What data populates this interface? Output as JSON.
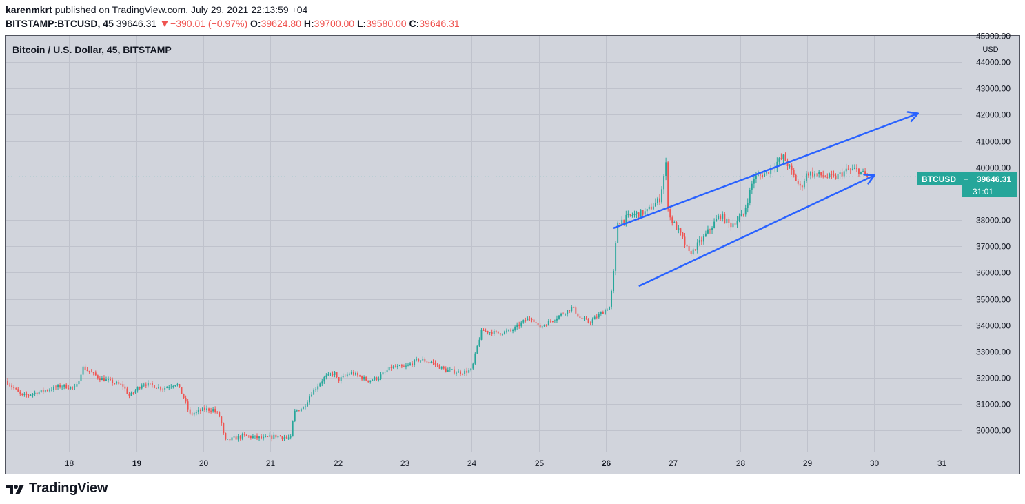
{
  "header": {
    "author": "karenmkrt",
    "published": "published on TradingView.com, July 29, 2021 22:13:59 +04",
    "symbol": "BITSTAMP:BTCUSD, 45",
    "price": "39646.31",
    "change": "−390.01 (−0.97%)",
    "o_label": "O:",
    "o_value": "39624.80",
    "h_label": "H:",
    "h_value": "39700.00",
    "l_label": "L:",
    "l_value": "39580.00",
    "c_label": "C:",
    "c_value": "39646.31"
  },
  "legend_title": "Bitcoin / U.S. Dollar, 45, BITSTAMP",
  "price_tag": {
    "symbol": "BTCUSD",
    "price": "39646.31",
    "countdown": "31:01"
  },
  "brand": "TradingView",
  "colors": {
    "up": "#26a69a",
    "down": "#ef5350",
    "background": "#d1d4dc",
    "trendline": "#2962ff",
    "grid": "#bfc2cc",
    "price_line": "#26a69a"
  },
  "chart_data": {
    "type": "candlestick",
    "title": "Bitcoin / U.S. Dollar, 45, BITSTAMP",
    "y_unit": "USD",
    "ylim": [
      29200,
      45000
    ],
    "xlim": [
      17.05,
      31.3
    ],
    "y_ticks": [
      {
        "value": 45000,
        "label": "45000.00"
      },
      {
        "value": 44000,
        "label": "44000.00"
      },
      {
        "value": 43000,
        "label": "43000.00"
      },
      {
        "value": 42000,
        "label": "42000.00"
      },
      {
        "value": 41000,
        "label": "41000.00"
      },
      {
        "value": 40000,
        "label": "40000.00"
      },
      {
        "value": 39000,
        "label": "39000.00"
      },
      {
        "value": 38000,
        "label": "38000.00"
      },
      {
        "value": 37000,
        "label": "37000.00"
      },
      {
        "value": 36000,
        "label": "36000.00"
      },
      {
        "value": 35000,
        "label": "35000.00"
      },
      {
        "value": 34000,
        "label": "34000.00"
      },
      {
        "value": 33000,
        "label": "33000.00"
      },
      {
        "value": 32000,
        "label": "32000.00"
      },
      {
        "value": 31000,
        "label": "31000.00"
      },
      {
        "value": 30000,
        "label": "30000.00"
      }
    ],
    "x_ticks": [
      {
        "value": 18,
        "label": "18",
        "bold": false
      },
      {
        "value": 19,
        "label": "19",
        "bold": true
      },
      {
        "value": 20,
        "label": "20",
        "bold": false
      },
      {
        "value": 21,
        "label": "21",
        "bold": false
      },
      {
        "value": 22,
        "label": "22",
        "bold": false
      },
      {
        "value": 23,
        "label": "23",
        "bold": false
      },
      {
        "value": 24,
        "label": "24",
        "bold": false
      },
      {
        "value": 25,
        "label": "25",
        "bold": false
      },
      {
        "value": 26,
        "label": "26",
        "bold": true
      },
      {
        "value": 27,
        "label": "27",
        "bold": false
      },
      {
        "value": 28,
        "label": "28",
        "bold": false
      },
      {
        "value": 29,
        "label": "29",
        "bold": false
      },
      {
        "value": 30,
        "label": "30",
        "bold": false
      },
      {
        "value": 31,
        "label": "31",
        "bold": false
      }
    ],
    "last_price": 39646.31,
    "bar_interval_days": 0.03125,
    "close_path": [
      [
        17.05,
        31900
      ],
      [
        17.3,
        31300
      ],
      [
        17.6,
        31500
      ],
      [
        17.9,
        31700
      ],
      [
        18.1,
        31600
      ],
      [
        18.2,
        32400
      ],
      [
        18.45,
        32000
      ],
      [
        18.8,
        31700
      ],
      [
        18.9,
        31300
      ],
      [
        19.1,
        31800
      ],
      [
        19.4,
        31600
      ],
      [
        19.6,
        31800
      ],
      [
        19.7,
        31300
      ],
      [
        19.8,
        30600
      ],
      [
        20.0,
        30800
      ],
      [
        20.15,
        30800
      ],
      [
        20.25,
        30500
      ],
      [
        20.32,
        29600
      ],
      [
        20.6,
        29800
      ],
      [
        20.9,
        29700
      ],
      [
        21.1,
        29800
      ],
      [
        21.3,
        29700
      ],
      [
        21.35,
        30700
      ],
      [
        21.5,
        30900
      ],
      [
        21.6,
        31400
      ],
      [
        21.8,
        32000
      ],
      [
        21.95,
        32200
      ],
      [
        22.0,
        31900
      ],
      [
        22.2,
        32200
      ],
      [
        22.45,
        31900
      ],
      [
        22.6,
        32000
      ],
      [
        22.8,
        32400
      ],
      [
        23.0,
        32400
      ],
      [
        23.2,
        32700
      ],
      [
        23.4,
        32600
      ],
      [
        23.6,
        32300
      ],
      [
        23.85,
        32200
      ],
      [
        24.0,
        32300
      ],
      [
        24.1,
        33400
      ],
      [
        24.15,
        33800
      ],
      [
        24.4,
        33700
      ],
      [
        24.6,
        33800
      ],
      [
        24.8,
        34200
      ],
      [
        24.9,
        34300
      ],
      [
        25.0,
        33900
      ],
      [
        25.2,
        34200
      ],
      [
        25.45,
        34600
      ],
      [
        25.5,
        34700
      ],
      [
        25.6,
        34300
      ],
      [
        25.75,
        34100
      ],
      [
        25.9,
        34400
      ],
      [
        26.05,
        34700
      ],
      [
        26.1,
        35600
      ],
      [
        26.17,
        37900
      ],
      [
        26.4,
        38200
      ],
      [
        26.6,
        38300
      ],
      [
        26.8,
        38800
      ],
      [
        26.9,
        40200
      ],
      [
        26.93,
        38200
      ],
      [
        27.1,
        37500
      ],
      [
        27.25,
        36700
      ],
      [
        27.45,
        37300
      ],
      [
        27.7,
        38200
      ],
      [
        27.85,
        37800
      ],
      [
        28.05,
        38200
      ],
      [
        28.2,
        39600
      ],
      [
        28.4,
        39800
      ],
      [
        28.55,
        40200
      ],
      [
        28.65,
        40400
      ],
      [
        28.75,
        39900
      ],
      [
        28.9,
        39200
      ],
      [
        29.0,
        39800
      ],
      [
        29.2,
        39700
      ],
      [
        29.4,
        39600
      ],
      [
        29.6,
        39900
      ],
      [
        29.75,
        39900
      ],
      [
        29.9,
        39646.31
      ]
    ],
    "channel_upper": {
      "start": [
        26.12,
        37700
      ],
      "end": [
        30.65,
        42050
      ]
    },
    "channel_lower": {
      "start": [
        26.5,
        35500
      ],
      "end": [
        30.0,
        39700
      ]
    }
  }
}
